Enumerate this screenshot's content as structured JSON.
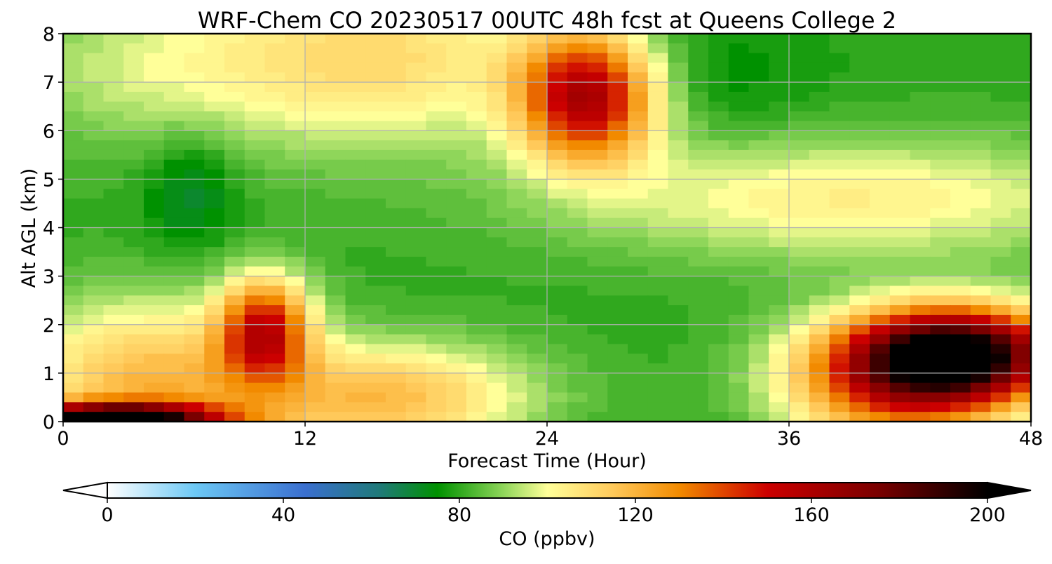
{
  "chart_data": {
    "type": "heatmap",
    "title": "WRF-Chem CO  20230517 00UTC 48h fcst at Queens College 2",
    "xlabel": "Forecast Time (Hour)",
    "ylabel": "Alt AGL (km)",
    "xlim": [
      0,
      48
    ],
    "ylim": [
      0,
      8
    ],
    "x_ticks": [
      0,
      12,
      24,
      36,
      48
    ],
    "y_ticks": [
      0,
      1,
      2,
      3,
      4,
      5,
      6,
      7,
      8
    ],
    "grid": true,
    "colorbar": {
      "label": "CO  (ppbv)",
      "range": [
        0,
        200
      ],
      "ticks": [
        0,
        40,
        80,
        120,
        160,
        200
      ],
      "extend": "both",
      "colormap_stops": [
        {
          "value": 0,
          "color": "#ffffff"
        },
        {
          "value": 20,
          "color": "#6cc8f5"
        },
        {
          "value": 45,
          "color": "#3a6fcf"
        },
        {
          "value": 62,
          "color": "#1f7a78"
        },
        {
          "value": 75,
          "color": "#009100"
        },
        {
          "value": 90,
          "color": "#8fd65a"
        },
        {
          "value": 100,
          "color": "#ffff99"
        },
        {
          "value": 115,
          "color": "#ffc95a"
        },
        {
          "value": 130,
          "color": "#f28a00"
        },
        {
          "value": 150,
          "color": "#cc0000"
        },
        {
          "value": 175,
          "color": "#7a0000"
        },
        {
          "value": 200,
          "color": "#000000"
        }
      ]
    },
    "background_ppbv": 80,
    "features": [
      {
        "label": "surface layer hours 0-4",
        "x": 2.5,
        "y": 0.05,
        "sx": 3.5,
        "sy": 0.22,
        "amp": 120
      },
      {
        "label": "low level hours 0-10",
        "x": 4,
        "y": 0.8,
        "sx": 4.5,
        "sy": 1.2,
        "amp": 38
      },
      {
        "label": "plume near hour 10",
        "x": 10,
        "y": 1.9,
        "sx": 1.6,
        "sy": 0.75,
        "amp": 65
      },
      {
        "label": "low level hours 12-20",
        "x": 16,
        "y": 0.5,
        "sx": 5,
        "sy": 0.8,
        "amp": 38
      },
      {
        "label": "aloft hours 10-21",
        "x": 15.5,
        "y": 7.5,
        "sx": 6,
        "sy": 1.3,
        "amp": 30
      },
      {
        "label": "aloft hours 0-9",
        "x": 4,
        "y": 7.3,
        "sx": 5,
        "sy": 1.2,
        "amp": 14
      },
      {
        "label": "upper plume near hour 26",
        "x": 26,
        "y": 6.7,
        "sx": 2.4,
        "sy": 0.95,
        "amp": 78
      },
      {
        "label": "mid-level band hours 28-48",
        "x": 39,
        "y": 4.6,
        "sx": 10,
        "sy": 0.9,
        "amp": 24
      },
      {
        "label": "late plume near hour 45",
        "x": 44.5,
        "y": 1.4,
        "sx": 3.6,
        "sy": 0.65,
        "amp": 110
      },
      {
        "label": "late low level hours 36-48",
        "x": 41.5,
        "y": 0.8,
        "sx": 4,
        "sy": 0.9,
        "amp": 60
      },
      {
        "label": "low CO pocket near hour 6",
        "x": 6.3,
        "y": 4.8,
        "sx": 1.6,
        "sy": 0.9,
        "amp": -12
      },
      {
        "label": "low CO band hours 30-40",
        "x": 32,
        "y": 7.1,
        "sx": 4,
        "sy": 0.9,
        "amp": -6
      }
    ]
  }
}
